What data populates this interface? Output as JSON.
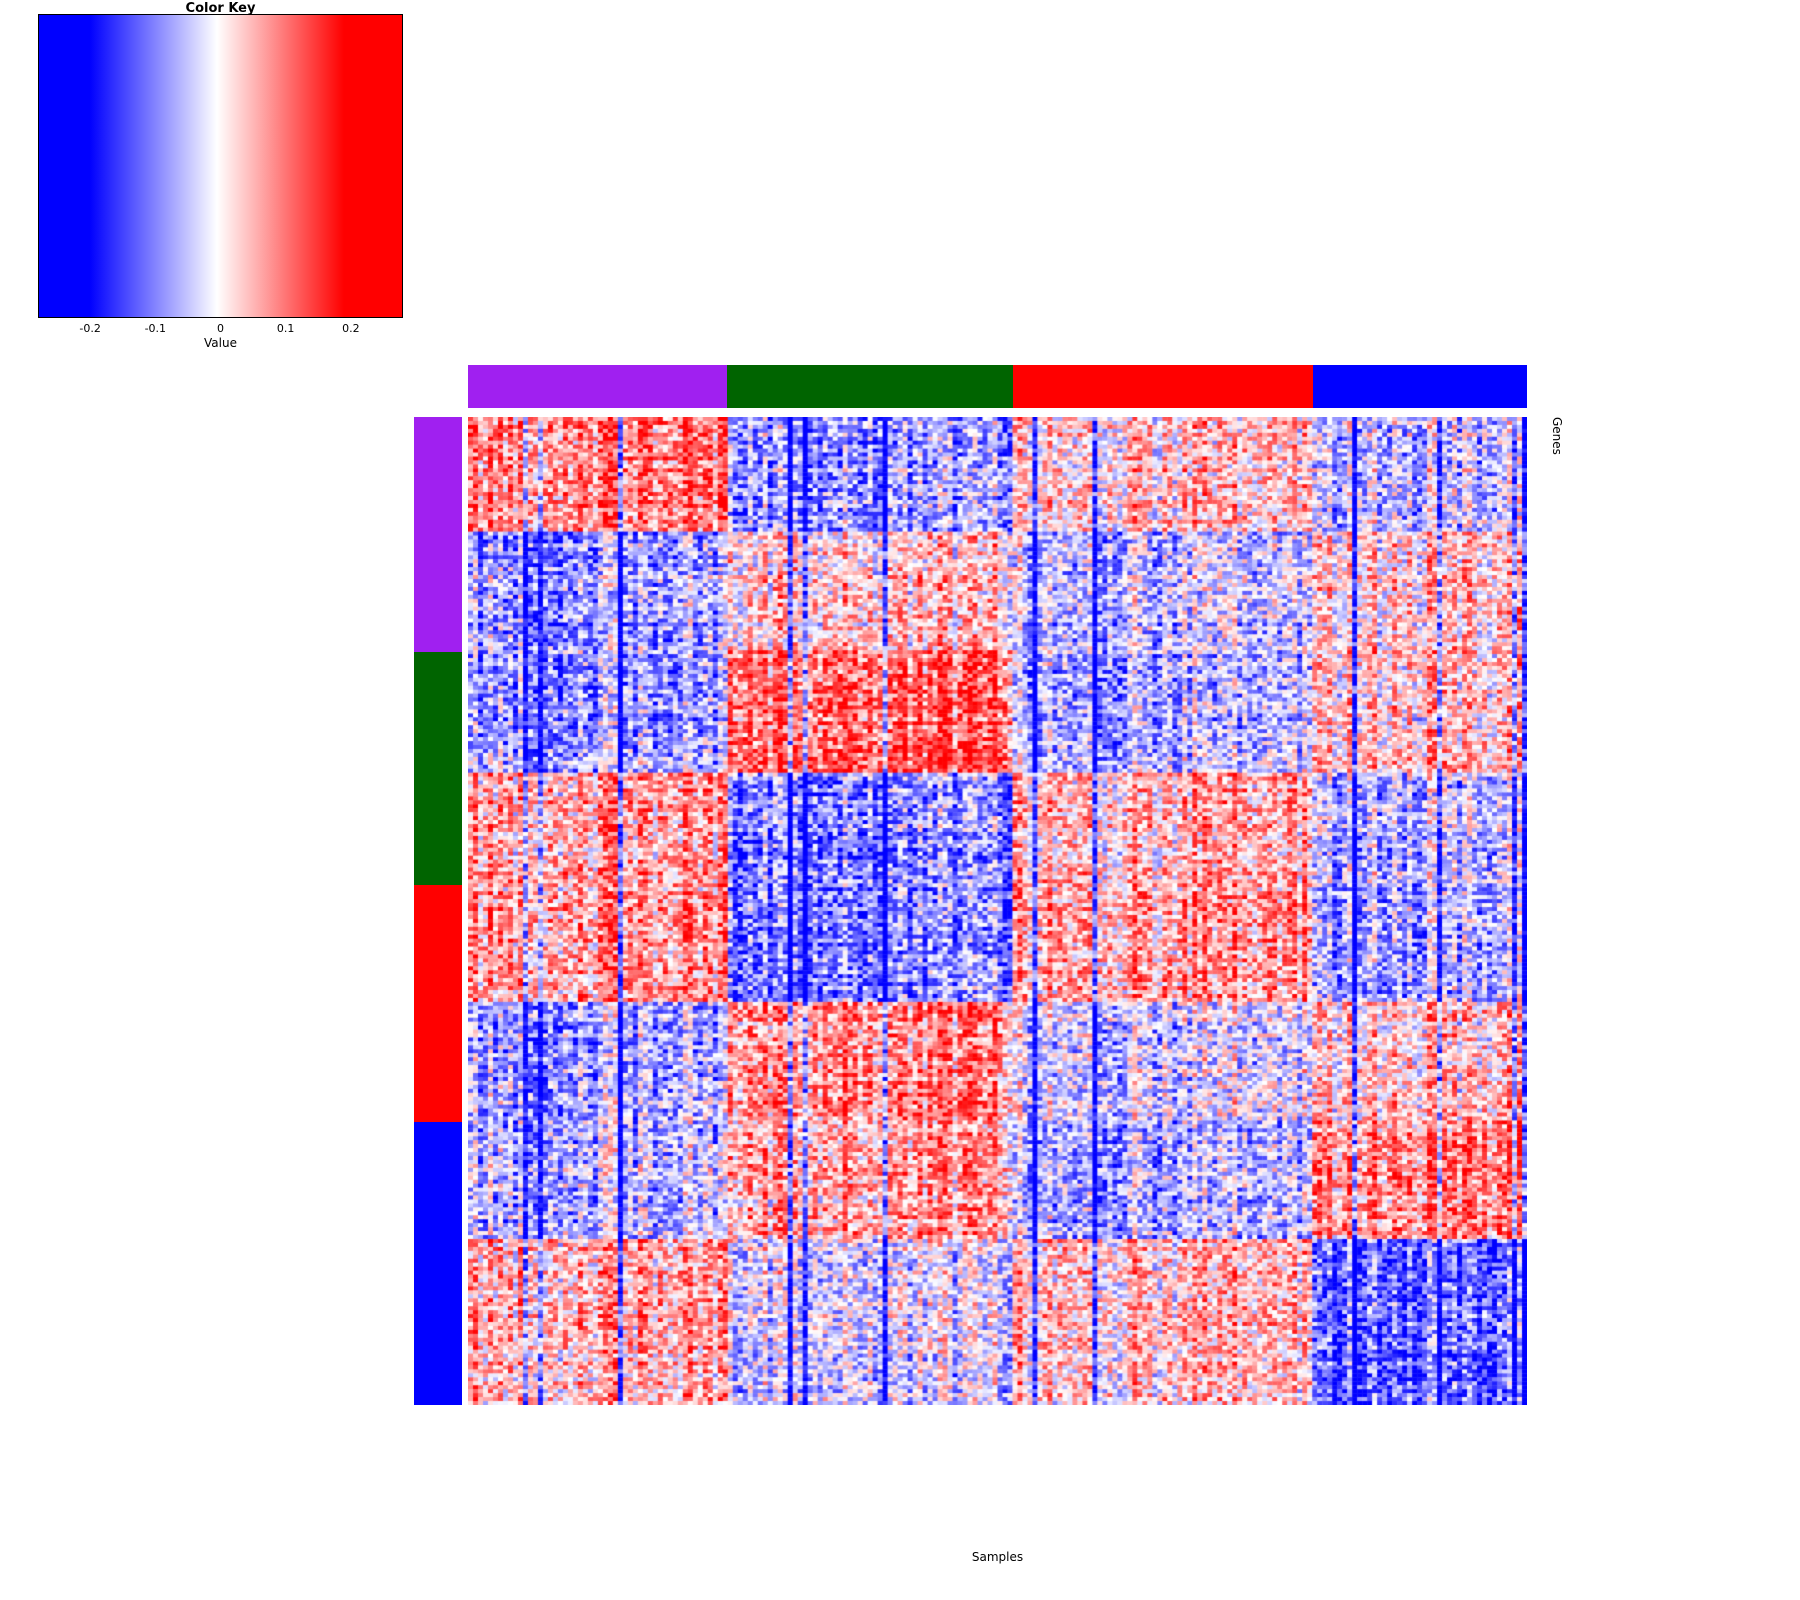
{
  "figure": {
    "background": "#FFFFFF"
  },
  "chart_data": {
    "type": "heatmap",
    "xlabel": "Samples",
    "ylabel": "Genes",
    "color_key": {
      "title": "Color Key",
      "label": "Value",
      "ticks": [
        -0.2,
        -0.1,
        0,
        0.1,
        0.2
      ],
      "domain": [
        -0.28,
        0.28
      ],
      "colors": [
        "#0000FF",
        "#FFFFFF",
        "#FF0000"
      ]
    },
    "value_domain": [
      -0.25,
      0.25
    ],
    "grid": {
      "n_samples": 212,
      "n_genes": 250
    },
    "column_groups": [
      {
        "name": "purple",
        "color": "#A020F0",
        "fraction": 0.245
      },
      {
        "name": "darkgreen",
        "color": "#006400",
        "fraction": 0.27
      },
      {
        "name": "red",
        "color": "#FF0000",
        "fraction": 0.283
      },
      {
        "name": "blue",
        "color": "#0000FF",
        "fraction": 0.202
      }
    ],
    "row_groups": [
      {
        "name": "purple",
        "color": "#A020F0",
        "fraction": 0.238
      },
      {
        "name": "darkgreen",
        "color": "#006400",
        "fraction": 0.236
      },
      {
        "name": "red",
        "color": "#FF0000",
        "fraction": 0.24
      },
      {
        "name": "blue",
        "color": "#0000FF",
        "fraction": 0.286
      }
    ],
    "row_bands": [
      {
        "fraction": 0.1144,
        "means_by_col_group": [
          0.13,
          -0.1,
          0.05,
          -0.05
        ]
      },
      {
        "fraction": 0.1235,
        "means_by_col_group": [
          -0.09,
          0.05,
          -0.05,
          0.05
        ]
      },
      {
        "fraction": 0.1215,
        "means_by_col_group": [
          -0.1,
          0.15,
          -0.08,
          0.05
        ]
      },
      {
        "fraction": 0.1144,
        "means_by_col_group": [
          0.09,
          -0.12,
          0.07,
          -0.06
        ]
      },
      {
        "fraction": 0.1164,
        "means_by_col_group": [
          0.1,
          -0.13,
          0.09,
          -0.08
        ]
      },
      {
        "fraction": 0.1235,
        "means_by_col_group": [
          -0.08,
          0.12,
          -0.03,
          0.06
        ]
      },
      {
        "fraction": 0.1194,
        "means_by_col_group": [
          -0.07,
          0.08,
          -0.08,
          0.12
        ]
      },
      {
        "fraction": 0.1669,
        "means_by_col_group": [
          0.08,
          -0.03,
          0.06,
          -0.15
        ]
      }
    ],
    "noise": {
      "seed": 42,
      "cell": 0.13,
      "column": 0.075,
      "row": 0.035,
      "stripe_prob": 0.05,
      "stripe_offset": -0.2
    }
  }
}
